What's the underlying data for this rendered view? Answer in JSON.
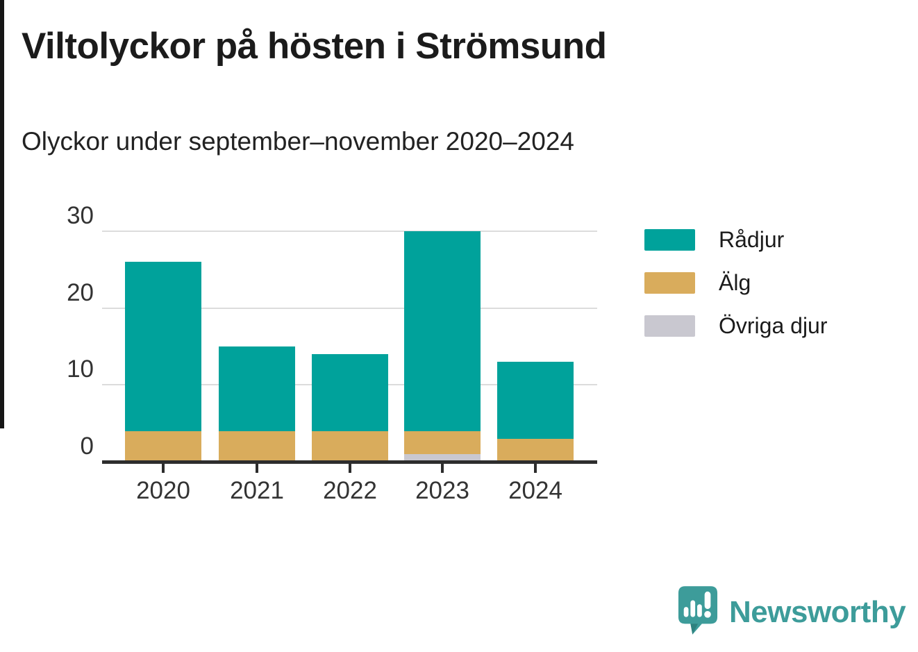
{
  "header": {
    "title": "Viltolyckor på hösten i Strömsund",
    "subtitle": "Olyckor under september–november 2020–2024"
  },
  "chart_data": {
    "type": "bar",
    "stacked": true,
    "title": "Viltolyckor på hösten i Strömsund",
    "subtitle": "Olyckor under september–november 2020–2024",
    "categories": [
      "2020",
      "2021",
      "2022",
      "2023",
      "2024"
    ],
    "series": [
      {
        "name": "Rådjur",
        "color": "#00a29b",
        "values": [
          22,
          11,
          10,
          26,
          10
        ]
      },
      {
        "name": "Älg",
        "color": "#d9ac5c",
        "values": [
          4,
          4,
          4,
          3,
          3
        ]
      },
      {
        "name": "Övriga djur",
        "color": "#c9c8d0",
        "values": [
          0,
          0,
          0,
          1,
          0
        ]
      }
    ],
    "stack_order_bottom_to_top": [
      "Övriga djur",
      "Älg",
      "Rådjur"
    ],
    "totals": [
      26,
      15,
      14,
      30,
      13
    ],
    "xlabel": "",
    "ylabel": "",
    "ylim": [
      0,
      30
    ],
    "yticks": [
      0,
      10,
      20,
      30
    ],
    "grid": "horizontal-gridlines-at-10-20-30",
    "legend_position": "right"
  },
  "legend": {
    "items": [
      {
        "label": "Rådjur",
        "color": "#00a29b"
      },
      {
        "label": "Älg",
        "color": "#d9ac5c"
      },
      {
        "label": "Övriga djur",
        "color": "#c9c8d0"
      }
    ]
  },
  "footer": {
    "brand": "Newsworthy",
    "brand_color": "#3d9c9a",
    "logo_icon": "speech-bubble-bar-chart-exclamation"
  },
  "colors": {
    "background": "#ffffff",
    "title_text": "#1b1b1b",
    "axis_text": "#333333",
    "gridline": "#dcdcdc",
    "axis_line": "#2d2d2d"
  }
}
